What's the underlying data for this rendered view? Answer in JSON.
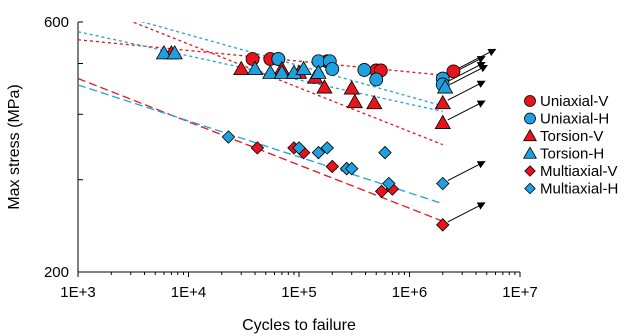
{
  "chart_data": {
    "type": "scatter",
    "xlabel": "Cycles to failure",
    "ylabel": "Max stress (MPa)",
    "xscale": "log",
    "yscale": "log",
    "xlim": [
      1000,
      10000000
    ],
    "ylim": [
      200,
      600
    ],
    "xticks": [
      "1E+3",
      "1E+4",
      "1E+5",
      "1E+6",
      "1E+7"
    ],
    "yticks": [
      "600",
      "200"
    ],
    "grid": false,
    "legend_position": "right",
    "series": [
      {
        "name": "Uniaxial-V",
        "marker": "circle",
        "color": "#e8141c",
        "points": [
          [
            38000,
            510
          ],
          [
            55000,
            510
          ],
          [
            65000,
            510
          ],
          [
            180000,
            505
          ],
          [
            500000,
            485
          ],
          [
            550000,
            485
          ],
          [
            2500000,
            483
          ]
        ],
        "runout_points": [
          [
            2500000,
            483
          ]
        ],
        "trend_line": [
          [
            1000,
            555
          ],
          [
            2000000,
            475
          ]
        ]
      },
      {
        "name": "Uniaxial-H",
        "marker": "circle",
        "color": "#1fa1e0",
        "points": [
          [
            65000,
            510
          ],
          [
            150000,
            505
          ],
          [
            190000,
            505
          ],
          [
            200000,
            488
          ],
          [
            390000,
            486
          ],
          [
            500000,
            466
          ],
          [
            2000000,
            468
          ],
          [
            2000000,
            456
          ]
        ],
        "runout_points": [
          [
            2000000,
            468
          ],
          [
            2000000,
            456
          ]
        ],
        "trend_line": [
          [
            1000,
            575
          ],
          [
            2000000,
            405
          ]
        ]
      },
      {
        "name": "Torsion-V",
        "marker": "triangle",
        "color": "#e8141c",
        "points": [
          [
            7000,
            523
          ],
          [
            30000,
            488
          ],
          [
            70000,
            488
          ],
          [
            100000,
            480
          ],
          [
            140000,
            470
          ],
          [
            170000,
            450
          ],
          [
            300000,
            448
          ],
          [
            320000,
            422
          ],
          [
            480000,
            420
          ],
          [
            2000000,
            420
          ],
          [
            2000000,
            385
          ]
        ],
        "runout_points": [
          [
            2000000,
            420
          ],
          [
            2000000,
            385
          ]
        ],
        "trend_line": [
          [
            1000,
            660
          ],
          [
            2000000,
            350
          ]
        ]
      },
      {
        "name": "Torsion-H",
        "marker": "triangle",
        "color": "#1fa1e0",
        "points": [
          [
            6000,
            523
          ],
          [
            7500,
            523
          ],
          [
            40000,
            488
          ],
          [
            55000,
            480
          ],
          [
            70000,
            480
          ],
          [
            90000,
            480
          ],
          [
            110000,
            488
          ],
          [
            150000,
            480
          ],
          [
            2100000,
            450
          ]
        ],
        "runout_points": [
          [
            2100000,
            450
          ]
        ],
        "trend_line": [
          [
            1000,
            650
          ],
          [
            2000000,
            415
          ]
        ]
      },
      {
        "name": "Multiaxial-V",
        "marker": "diamond",
        "color": "#e8141c",
        "points": [
          [
            42000,
            345
          ],
          [
            90000,
            345
          ],
          [
            110000,
            338
          ],
          [
            200000,
            318
          ],
          [
            270000,
            315
          ],
          [
            560000,
            285
          ],
          [
            700000,
            288
          ],
          [
            2000000,
            246
          ]
        ],
        "runout_points": [
          [
            2000000,
            246
          ]
        ],
        "trend_line": [
          [
            1000,
            468
          ],
          [
            2000000,
            250
          ]
        ]
      },
      {
        "name": "Multiaxial-H",
        "marker": "diamond",
        "color": "#1fa1e0",
        "points": [
          [
            23000,
            362
          ],
          [
            100000,
            345
          ],
          [
            150000,
            338
          ],
          [
            180000,
            345
          ],
          [
            270000,
            315
          ],
          [
            300000,
            315
          ],
          [
            600000,
            338
          ],
          [
            650000,
            295
          ],
          [
            2000000,
            295
          ]
        ],
        "runout_points": [
          [
            2000000,
            295
          ]
        ],
        "trend_line": [
          [
            1000,
            455
          ],
          [
            2000000,
            270
          ]
        ]
      }
    ]
  }
}
